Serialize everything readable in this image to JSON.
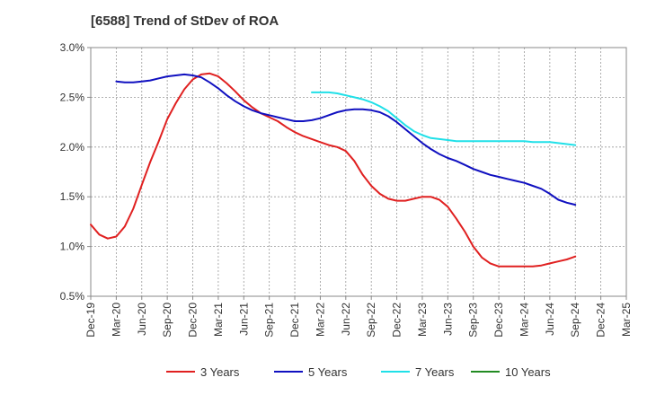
{
  "chart_data": {
    "type": "line",
    "title": "[6588]  Trend of StDev of ROA",
    "x_ticks": [
      "Dec-19",
      "Mar-20",
      "Jun-20",
      "Sep-20",
      "Dec-20",
      "Mar-21",
      "Jun-21",
      "Sep-21",
      "Dec-21",
      "Mar-22",
      "Jun-22",
      "Sep-22",
      "Dec-22",
      "Mar-23",
      "Jun-23",
      "Sep-23",
      "Dec-23",
      "Mar-24",
      "Jun-24",
      "Sep-24",
      "Dec-24",
      "Mar-25"
    ],
    "y_ticks": [
      "0.5%",
      "1.0%",
      "1.5%",
      "2.0%",
      "2.5%",
      "3.0%"
    ],
    "ylim": [
      0.5,
      3.0
    ],
    "grid": "vertical dashed",
    "legend_position": "bottom",
    "series": [
      {
        "name": "3 Years",
        "color": "#e02020",
        "values": [
          1.22,
          1.12,
          1.08,
          1.1,
          1.2,
          1.38,
          1.62,
          1.85,
          2.06,
          2.28,
          2.44,
          2.58,
          2.68,
          2.73,
          2.74,
          2.71,
          2.64,
          2.56,
          2.47,
          2.4,
          2.34,
          2.3,
          2.26,
          2.2,
          2.15,
          2.11,
          2.08,
          2.05,
          2.02,
          2.0,
          1.96,
          1.86,
          1.72,
          1.61,
          1.53,
          1.48,
          1.46,
          1.46,
          1.48,
          1.5,
          1.5,
          1.47,
          1.4,
          1.28,
          1.15,
          1.0,
          0.89,
          0.83,
          0.8,
          0.8,
          0.8,
          0.8,
          0.8,
          0.81,
          0.83,
          0.85,
          0.87,
          0.9
        ]
      },
      {
        "name": "5 Years",
        "color": "#1010c0",
        "values": [
          null,
          null,
          null,
          2.66,
          2.65,
          2.65,
          2.66,
          2.67,
          2.69,
          2.71,
          2.72,
          2.73,
          2.72,
          2.7,
          2.65,
          2.59,
          2.52,
          2.46,
          2.41,
          2.37,
          2.34,
          2.32,
          2.3,
          2.28,
          2.26,
          2.26,
          2.27,
          2.29,
          2.32,
          2.35,
          2.37,
          2.38,
          2.38,
          2.37,
          2.35,
          2.31,
          2.25,
          2.18,
          2.11,
          2.04,
          1.98,
          1.93,
          1.89,
          1.86,
          1.82,
          1.78,
          1.75,
          1.72,
          1.7,
          1.68,
          1.66,
          1.64,
          1.61,
          1.58,
          1.53,
          1.47,
          1.44,
          1.42
        ]
      },
      {
        "name": "7 Years",
        "color": "#20e0e8",
        "values": [
          null,
          null,
          null,
          null,
          null,
          null,
          null,
          null,
          null,
          null,
          null,
          null,
          null,
          null,
          null,
          null,
          null,
          null,
          null,
          null,
          null,
          null,
          null,
          null,
          null,
          null,
          2.55,
          2.55,
          2.55,
          2.54,
          2.52,
          2.5,
          2.48,
          2.45,
          2.41,
          2.36,
          2.29,
          2.22,
          2.16,
          2.12,
          2.09,
          2.08,
          2.07,
          2.06,
          2.06,
          2.06,
          2.06,
          2.06,
          2.06,
          2.06,
          2.06,
          2.06,
          2.05,
          2.05,
          2.05,
          2.04,
          2.03,
          2.02
        ]
      },
      {
        "name": "10 Years",
        "color": "#228b22",
        "values": []
      }
    ]
  }
}
